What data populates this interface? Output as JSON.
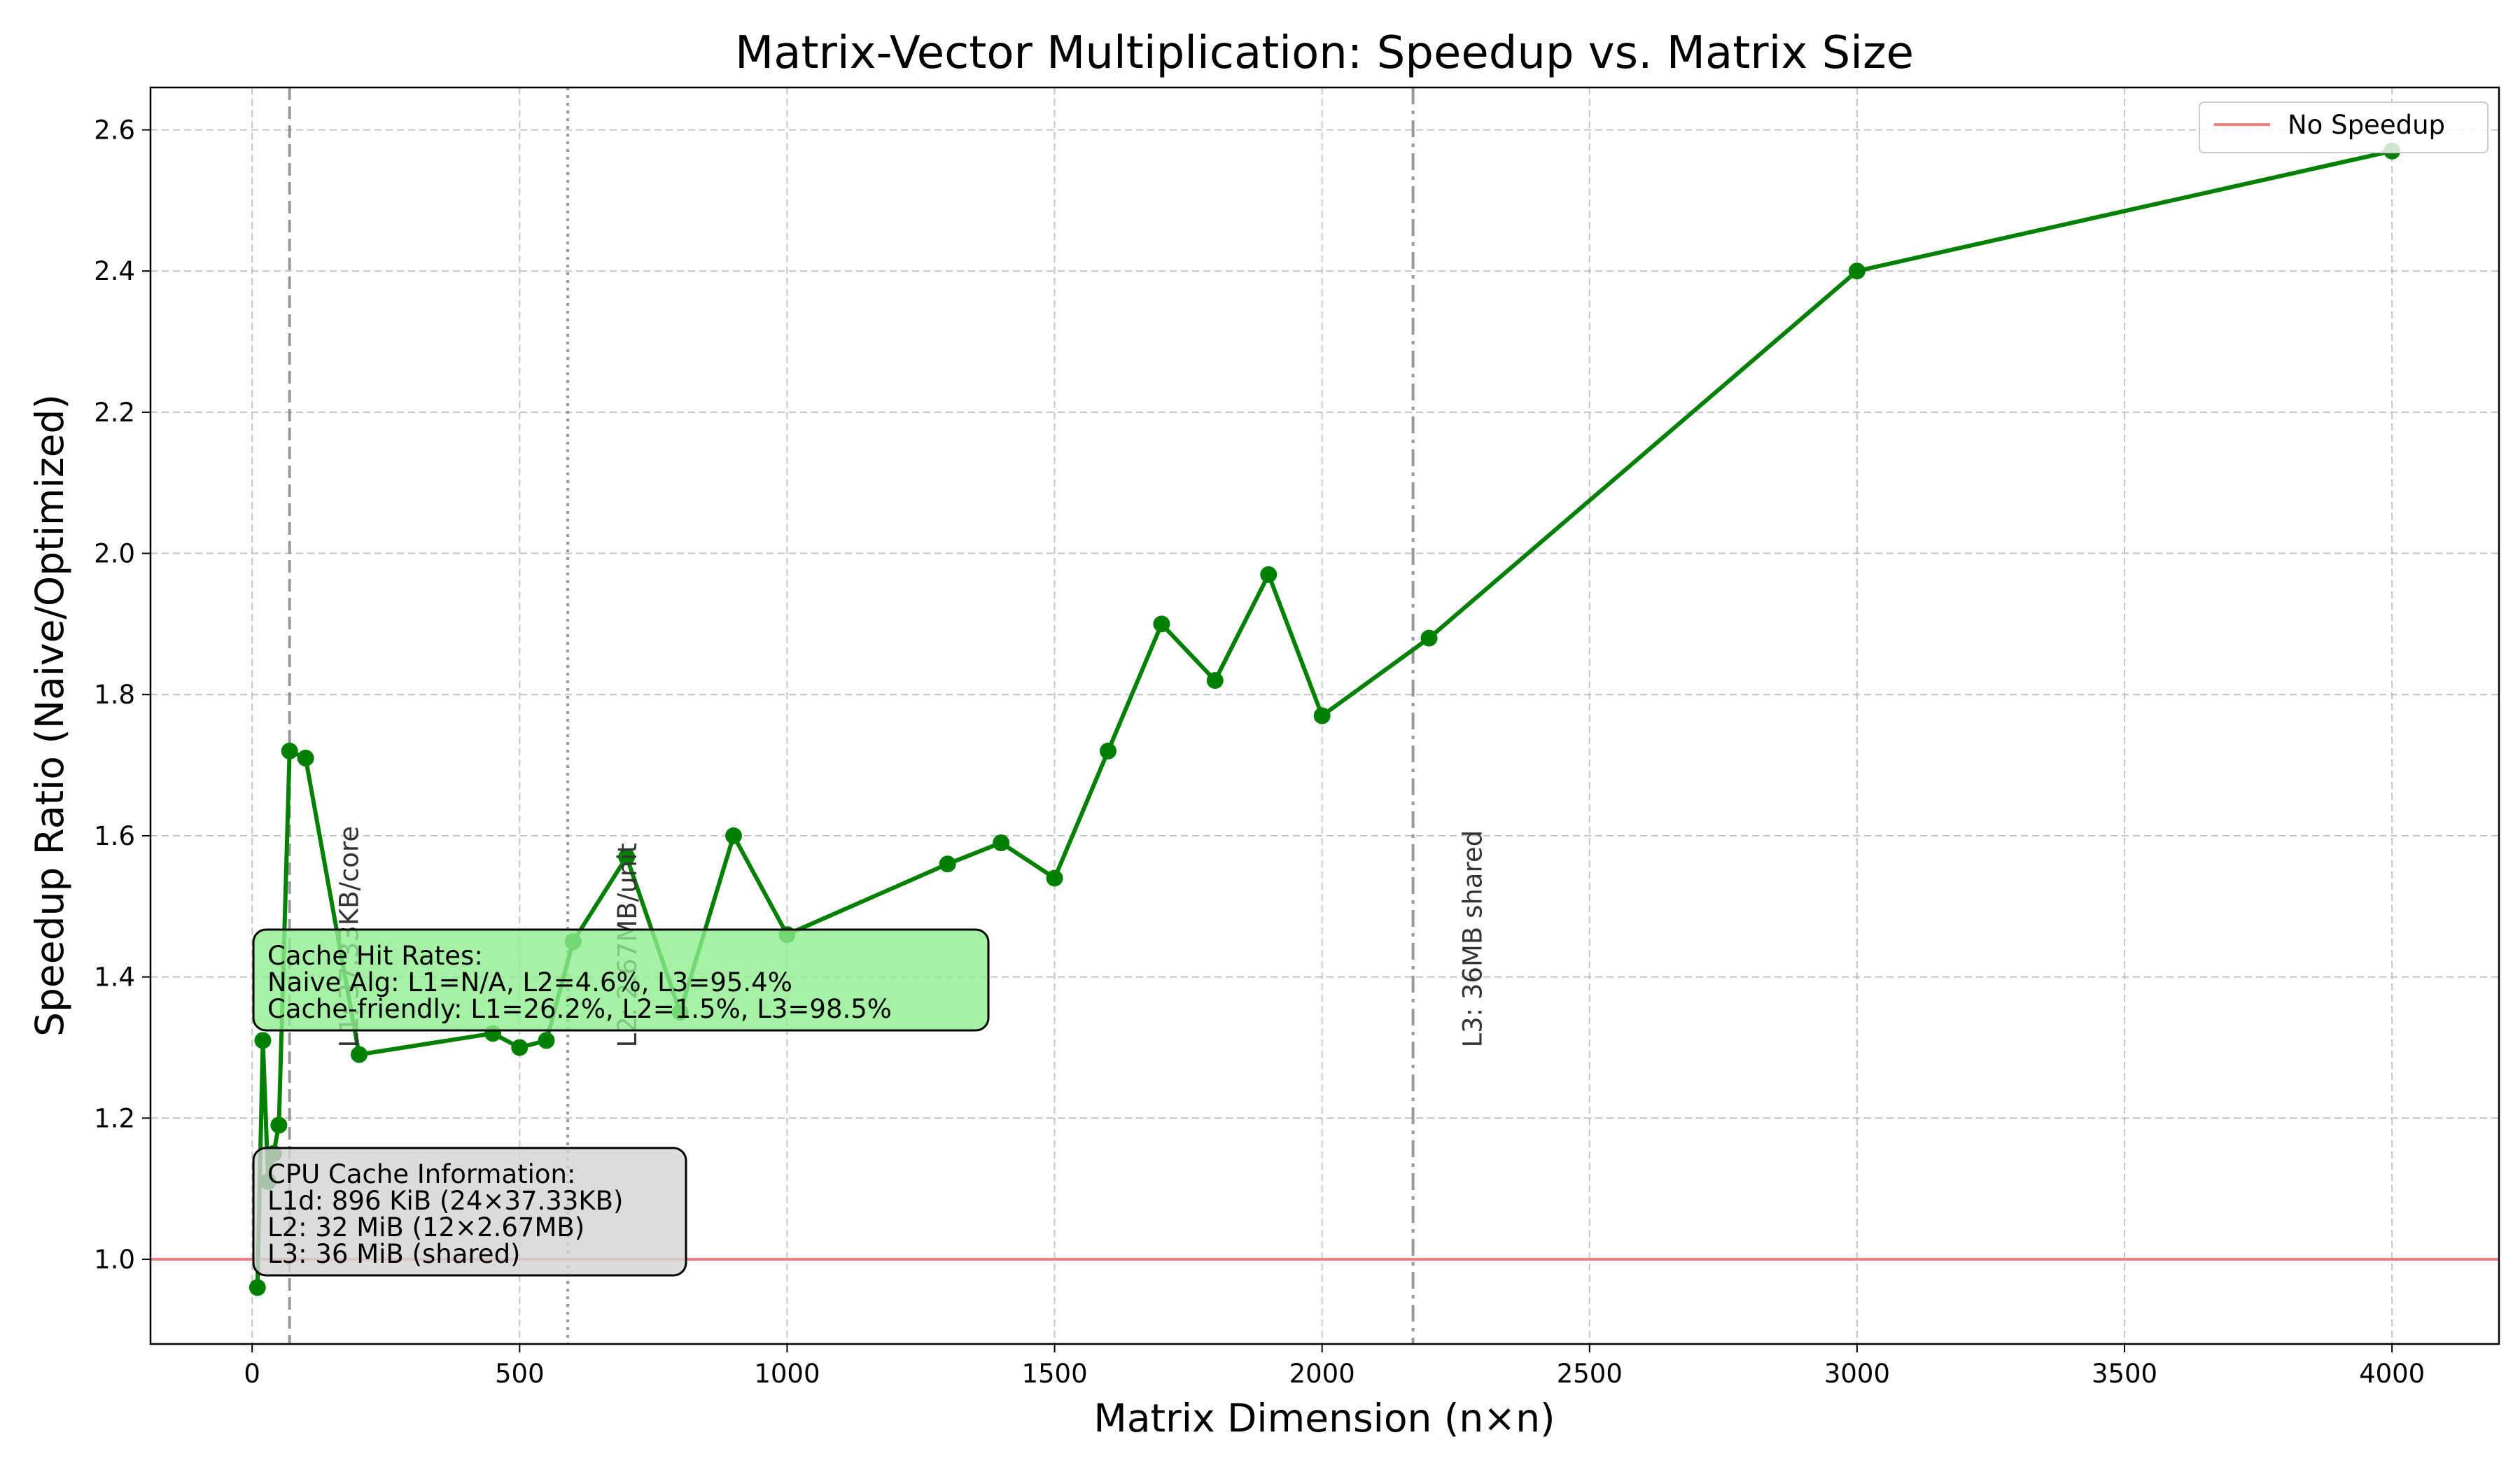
{
  "chart_data": {
    "type": "line",
    "title": "Matrix-Vector Multiplication: Speedup vs. Matrix Size",
    "xlabel": "Matrix Dimension (n×n)",
    "ylabel": "Speedup Ratio (Naive/Optimized)",
    "xlim": [
      -190,
      4200
    ],
    "ylim": [
      0.88,
      2.66
    ],
    "xticks": [
      0,
      500,
      1000,
      1500,
      2000,
      2500,
      3000,
      3500,
      4000
    ],
    "yticks": [
      1.0,
      1.2,
      1.4,
      1.6,
      1.8,
      2.0,
      2.2,
      2.4,
      2.6
    ],
    "xtick_labels": [
      "0",
      "500",
      "1000",
      "1500",
      "2000",
      "2500",
      "3000",
      "3500",
      "4000"
    ],
    "ytick_labels": [
      "1.0",
      "1.2",
      "1.4",
      "1.6",
      "1.8",
      "2.0",
      "2.2",
      "2.4",
      "2.6"
    ],
    "grid": true,
    "legend_position": "top-right",
    "colors": {
      "series": "#008000",
      "baseline": "#f08080",
      "grid": "#b0b0b0",
      "cache_hit_box": "#90ee90",
      "cpu_info_box": "#d3d3d3"
    },
    "series": [
      {
        "x": [
          10,
          20,
          30,
          40,
          50,
          70,
          100,
          200,
          450,
          500,
          550,
          600,
          700,
          800,
          900,
          1000,
          1300,
          1400,
          1500,
          1600,
          1700,
          1800,
          1900,
          2000,
          2200,
          3000,
          4000
        ],
        "y": [
          0.96,
          1.31,
          1.11,
          1.15,
          1.19,
          1.72,
          1.71,
          1.29,
          1.32,
          1.3,
          1.31,
          1.45,
          1.57,
          1.35,
          1.6,
          1.46,
          1.56,
          1.59,
          1.54,
          1.72,
          1.9,
          1.82,
          1.97,
          1.77,
          1.88,
          2.4,
          2.57
        ]
      }
    ],
    "baseline": {
      "name": "No Speedup",
      "y": 1.0
    },
    "vertical_lines": [
      {
        "x": 70,
        "style": "dashed",
        "label": "L1: 37.33KB/core"
      },
      {
        "x": 590,
        "style": "dotted",
        "label": "L2: 2.67MB/unit"
      },
      {
        "x": 2170,
        "style": "dashdot",
        "label": "L3: 36MB shared"
      }
    ],
    "annotations": {
      "cache_hit_rates": [
        "Cache Hit Rates:",
        "Naive Alg: L1=N/A, L2=4.6%, L3=95.4%",
        "Cache-friendly: L1=26.2%, L2=1.5%, L3=98.5%"
      ],
      "cpu_cache_info": [
        "CPU Cache Information:",
        "L1d: 896 KiB (24×37.33KB)",
        "L2: 32 MiB (12×2.67MB)",
        "L3: 36 MiB (shared)"
      ]
    }
  }
}
